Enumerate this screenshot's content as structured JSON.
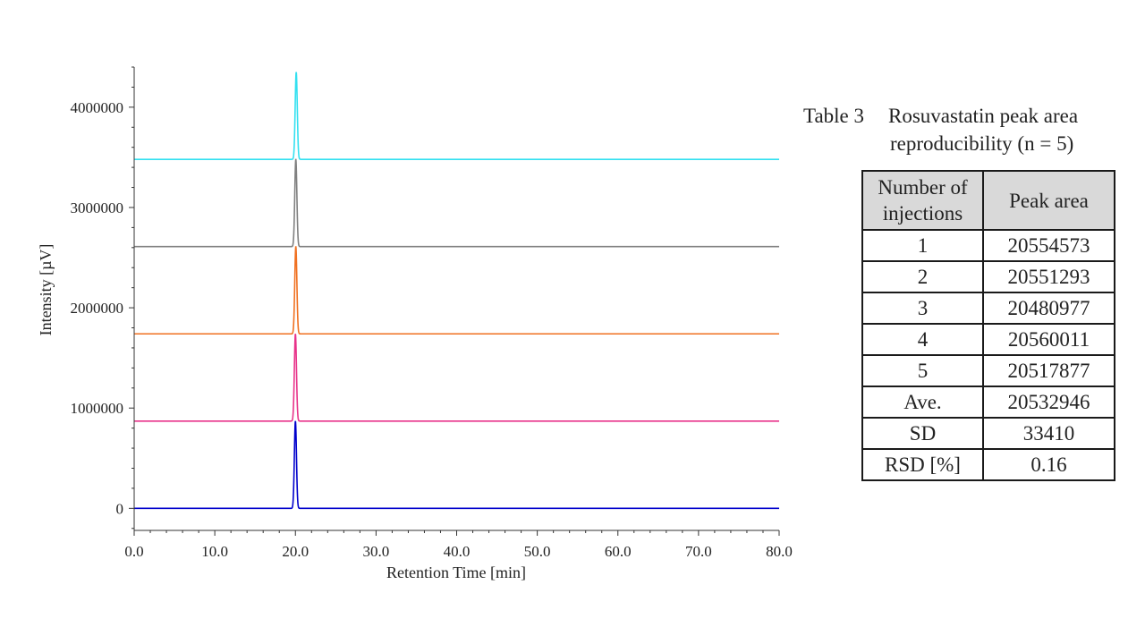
{
  "chart_data": {
    "type": "line",
    "xlabel": "Retention Time [min]",
    "ylabel": "Intensity [µV]",
    "xlim": [
      0,
      80
    ],
    "ylim": [
      -220000,
      4400000
    ],
    "x_ticks": [
      "0.0",
      "10.0",
      "20.0",
      "30.0",
      "40.0",
      "50.0",
      "60.0",
      "70.0",
      "80.0"
    ],
    "x_tick_values": [
      0,
      10,
      20,
      30,
      40,
      50,
      60,
      70,
      80
    ],
    "y_ticks": [
      "0",
      "1000000",
      "2000000",
      "3000000",
      "4000000"
    ],
    "y_tick_values": [
      0,
      1000000,
      2000000,
      3000000,
      4000000
    ],
    "series": [
      {
        "color": "#0000cc",
        "baseline": 0,
        "peak_time": 20.0,
        "peak_height": 870000
      },
      {
        "color": "#e8338a",
        "baseline": 870000,
        "peak_time": 20.0,
        "peak_height": 870000
      },
      {
        "color": "#f07020",
        "baseline": 1740000,
        "peak_time": 20.05,
        "peak_height": 870000
      },
      {
        "color": "#808080",
        "baseline": 2610000,
        "peak_time": 20.05,
        "peak_height": 870000
      },
      {
        "color": "#33e0f0",
        "baseline": 3480000,
        "peak_time": 20.1,
        "peak_height": 870000
      }
    ]
  },
  "table": {
    "caption_number": "Table 3",
    "caption_line1": "Rosuvastatin peak area",
    "caption_line2": "reproducibility (n = 5)",
    "header_injections": "Number of injections",
    "header_area": "Peak area",
    "rows": [
      {
        "n": "1",
        "area": "20554573"
      },
      {
        "n": "2",
        "area": "20551293"
      },
      {
        "n": "3",
        "area": "20480977"
      },
      {
        "n": "4",
        "area": "20560011"
      },
      {
        "n": "5",
        "area": "20517877"
      }
    ],
    "stats": [
      {
        "label": "Ave.",
        "value": "20532946"
      },
      {
        "label": "SD",
        "value": "33410"
      },
      {
        "label": "RSD [%]",
        "value": "0.16"
      }
    ]
  }
}
